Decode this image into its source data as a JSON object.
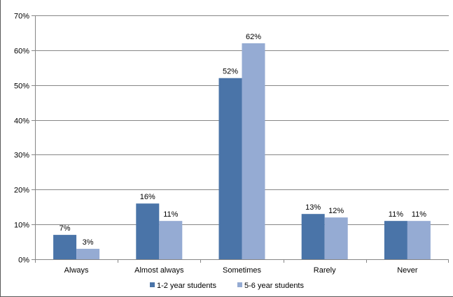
{
  "chart_data": {
    "type": "bar",
    "categories": [
      "Always",
      "Almost always",
      "Sometimes",
      "Rarely",
      "Never"
    ],
    "series": [
      {
        "name": "1-2 year students",
        "color": "#4A74A8",
        "values": [
          7,
          16,
          52,
          13,
          11
        ],
        "labels": [
          "7%",
          "16%",
          "52%",
          "13%",
          "11%"
        ]
      },
      {
        "name": "5-6 year students",
        "color": "#95ABD3",
        "values": [
          3,
          11,
          62,
          12,
          11
        ],
        "labels": [
          "3%",
          "11%",
          "62%",
          "12%",
          "11%"
        ]
      }
    ],
    "yticks": [
      {
        "value": 0,
        "label": "0%"
      },
      {
        "value": 10,
        "label": "10%"
      },
      {
        "value": 20,
        "label": "20%"
      },
      {
        "value": 30,
        "label": "30%"
      },
      {
        "value": 40,
        "label": "40%"
      },
      {
        "value": 50,
        "label": "50%"
      },
      {
        "value": 60,
        "label": "60%"
      },
      {
        "value": 70,
        "label": "70%"
      }
    ],
    "ylim": [
      0,
      70
    ],
    "grid": true,
    "legend_position": "bottom",
    "title": "",
    "xlabel": "",
    "ylabel": ""
  }
}
